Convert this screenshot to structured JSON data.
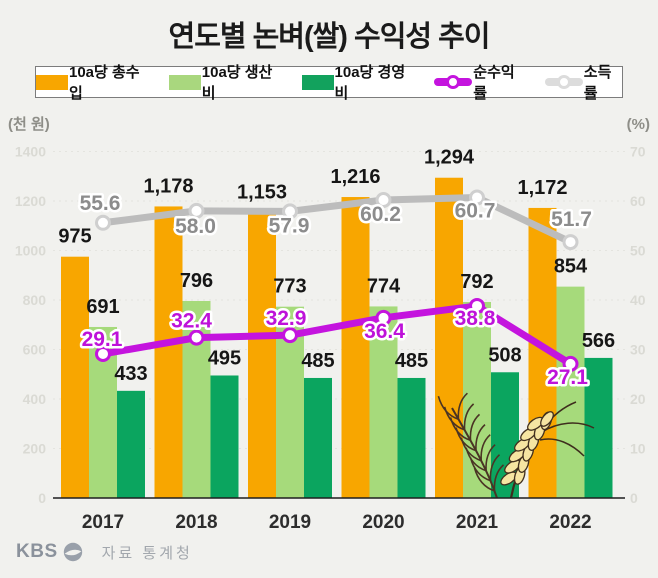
{
  "title": "연도별 논벼(쌀) 수익성 추이",
  "legend": [
    {
      "label": "10a당 총수입",
      "type": "swatch",
      "color": "#F8A600"
    },
    {
      "label": "10a당 생산비",
      "type": "swatch",
      "color": "#A9D77E"
    },
    {
      "label": "10a당 경영비",
      "type": "swatch",
      "color": "#12A25D"
    },
    {
      "label": "순수익률",
      "type": "line",
      "color": "#C414DE"
    },
    {
      "label": "소득률",
      "type": "line",
      "color": "#DCDCDC"
    }
  ],
  "axes": {
    "left_unit": "(천 원)",
    "right_unit": "(%)",
    "left_max": 1400,
    "right_max": 70,
    "left_ticks": [
      "1400",
      "1200",
      "1000",
      "800",
      "600",
      "400",
      "200",
      "0"
    ],
    "right_ticks": [
      "70",
      "60",
      "50",
      "40",
      "30",
      "20",
      "10",
      "0"
    ]
  },
  "chart_data": {
    "type": "bar+line",
    "title": "연도별 논벼(쌀) 수익성 추이",
    "categories": [
      "2017",
      "2018",
      "2019",
      "2020",
      "2021",
      "2022"
    ],
    "ylabel_left": "천 원",
    "ylabel_right": "%",
    "ylim_left": [
      0,
      1400
    ],
    "ylim_right": [
      0,
      70
    ],
    "grid": true,
    "legend_position": "top",
    "series": [
      {
        "key": "total-income",
        "name": "10a당 총수입",
        "type": "bar",
        "axis": "left",
        "color": "#F8A600",
        "values": [
          975,
          1178,
          1153,
          1216,
          1294,
          1172
        ],
        "labels": [
          "975",
          "1,178",
          "1,153",
          "1,216",
          "1,294",
          "1,172"
        ]
      },
      {
        "key": "production-cost",
        "name": "10a당 생산비",
        "type": "bar",
        "axis": "left",
        "color": "#A6DA7B",
        "values": [
          691,
          796,
          773,
          774,
          792,
          854
        ],
        "labels": [
          "691",
          "796",
          "773",
          "774",
          "792",
          "854"
        ]
      },
      {
        "key": "operating-cost",
        "name": "10a당 경영비",
        "type": "bar",
        "axis": "left",
        "color": "#0BA55F",
        "values": [
          433,
          495,
          485,
          485,
          508,
          566
        ],
        "labels": [
          "433",
          "495",
          "485",
          "485",
          "508",
          "566"
        ]
      },
      {
        "key": "net-profit-rate",
        "name": "순수익률",
        "type": "line",
        "axis": "right",
        "color": "#C414DE",
        "label_color": "#BE12D9",
        "marker_ring": "#C414DE",
        "values": [
          29.1,
          32.4,
          32.9,
          36.4,
          38.8,
          27.1
        ],
        "labels": [
          "29.1",
          "32.4",
          "32.9",
          "36.4",
          "38.8",
          "27.1"
        ]
      },
      {
        "key": "income-rate",
        "name": "소득률",
        "type": "line",
        "axis": "right",
        "color": "#BCBCBC",
        "label_color": "#8C8C8C",
        "marker_ring": "#CFCFCF",
        "values": [
          55.6,
          58.0,
          57.9,
          60.2,
          60.7,
          51.7
        ],
        "labels": [
          "55.6",
          "58.0",
          "57.9",
          "60.2",
          "60.7",
          "51.7"
        ]
      }
    ]
  },
  "footer": {
    "logo": "KBS",
    "source": "자료 통계청"
  }
}
